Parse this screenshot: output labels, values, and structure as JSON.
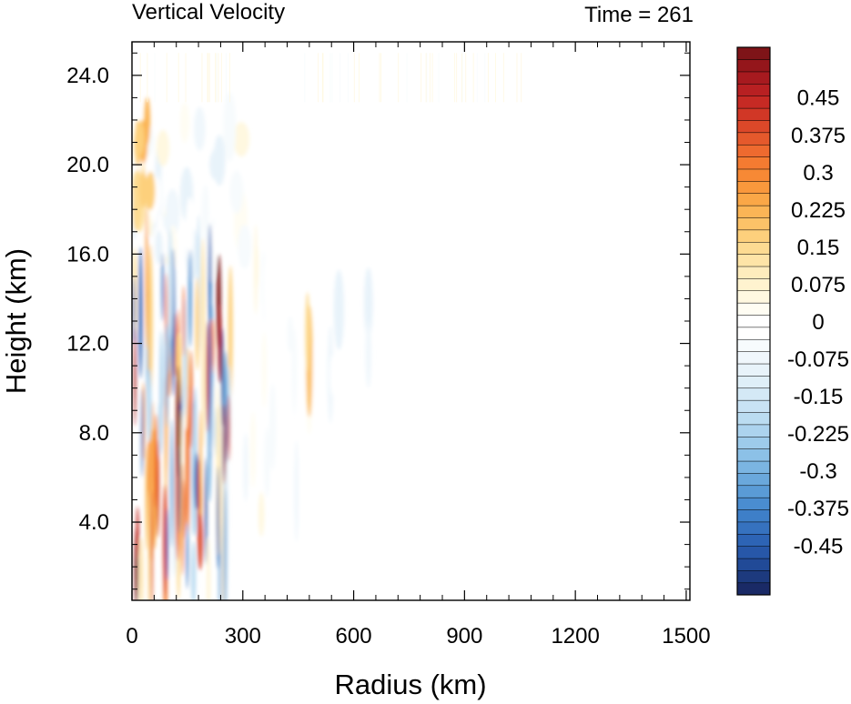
{
  "chart_data": {
    "type": "heatmap",
    "title": "Vertical Velocity",
    "subtitle": "Time = 261",
    "xlabel": "Radius (km)",
    "ylabel": "Height (km)",
    "xlim": [
      0,
      1510
    ],
    "ylim": [
      0.5,
      25.5
    ],
    "xticks": [
      0,
      300,
      600,
      900,
      1200,
      1500
    ],
    "yticks": [
      4.0,
      8.0,
      12.0,
      16.0,
      20.0,
      24.0
    ],
    "xtick_labels": [
      "0",
      "300",
      "600",
      "900",
      "1200",
      "1500"
    ],
    "ytick_labels": [
      "4.0",
      "8.0",
      "12.0",
      "16.0",
      "20.0",
      "24.0"
    ],
    "grid": false,
    "colorbar": {
      "placement": "right",
      "levels": [
        -0.55,
        -0.525,
        -0.5,
        -0.475,
        -0.45,
        -0.425,
        -0.4,
        -0.375,
        -0.35,
        -0.325,
        -0.3,
        -0.275,
        -0.25,
        -0.225,
        -0.2,
        -0.175,
        -0.15,
        -0.125,
        -0.1,
        -0.075,
        -0.05,
        -0.025,
        0,
        0.025,
        0.05,
        0.075,
        0.1,
        0.125,
        0.15,
        0.175,
        0.2,
        0.225,
        0.25,
        0.275,
        0.3,
        0.325,
        0.35,
        0.375,
        0.4,
        0.425,
        0.45,
        0.475,
        0.5,
        0.525,
        0.55
      ],
      "tick_values": [
        0.45,
        0.375,
        0.3,
        0.225,
        0.15,
        0.075,
        0,
        -0.075,
        -0.15,
        -0.225,
        -0.3,
        -0.375,
        -0.45
      ],
      "tick_labels": [
        "0.45",
        "0.375",
        "0.3",
        "0.225",
        "0.15",
        "0.075",
        "0",
        "-0.075",
        "-0.15",
        "-0.225",
        "-0.3",
        "-0.375",
        "-0.45"
      ],
      "colors": [
        "#1a2a66",
        "#1d3a7e",
        "#214a97",
        "#2757a8",
        "#2d64b5",
        "#3672bf",
        "#3e7fc8",
        "#4a8dd0",
        "#5a9bd6",
        "#6aa8dc",
        "#7bb5e2",
        "#8cc1e7",
        "#9dcbeb",
        "#acd3ee",
        "#bbdcf1",
        "#c8e2f4",
        "#d4e9f6",
        "#dfeff8",
        "#e8f3fa",
        "#f0f7fc",
        "#f7fbfd",
        "#ffffff",
        "#ffffff",
        "#fffdf3",
        "#fff8e0",
        "#fff3cf",
        "#feecbd",
        "#fee4a7",
        "#fddb92",
        "#fdd07c",
        "#fcc268",
        "#fbb556",
        "#faa747",
        "#f9983c",
        "#f78935",
        "#f47b31",
        "#ee6a2f",
        "#e5592c",
        "#dc4829",
        "#d13726",
        "#c62a24",
        "#b82022",
        "#a71a1f",
        "#94161b",
        "#7e1418"
      ]
    },
    "field_description_points": [
      {
        "x": 15,
        "y": 2.0,
        "value": 0.5
      },
      {
        "x": 130,
        "y": 8.5,
        "value": 0.55
      },
      {
        "x": 200,
        "y": 4.5,
        "value": -0.5
      },
      {
        "x": 235,
        "y": 14.0,
        "value": 0.55
      },
      {
        "x": 245,
        "y": 10.5,
        "value": -0.5
      },
      {
        "x": 480,
        "y": 11.0,
        "value": 0.2
      },
      {
        "x": 640,
        "y": 13.5,
        "value": -0.1
      }
    ]
  }
}
